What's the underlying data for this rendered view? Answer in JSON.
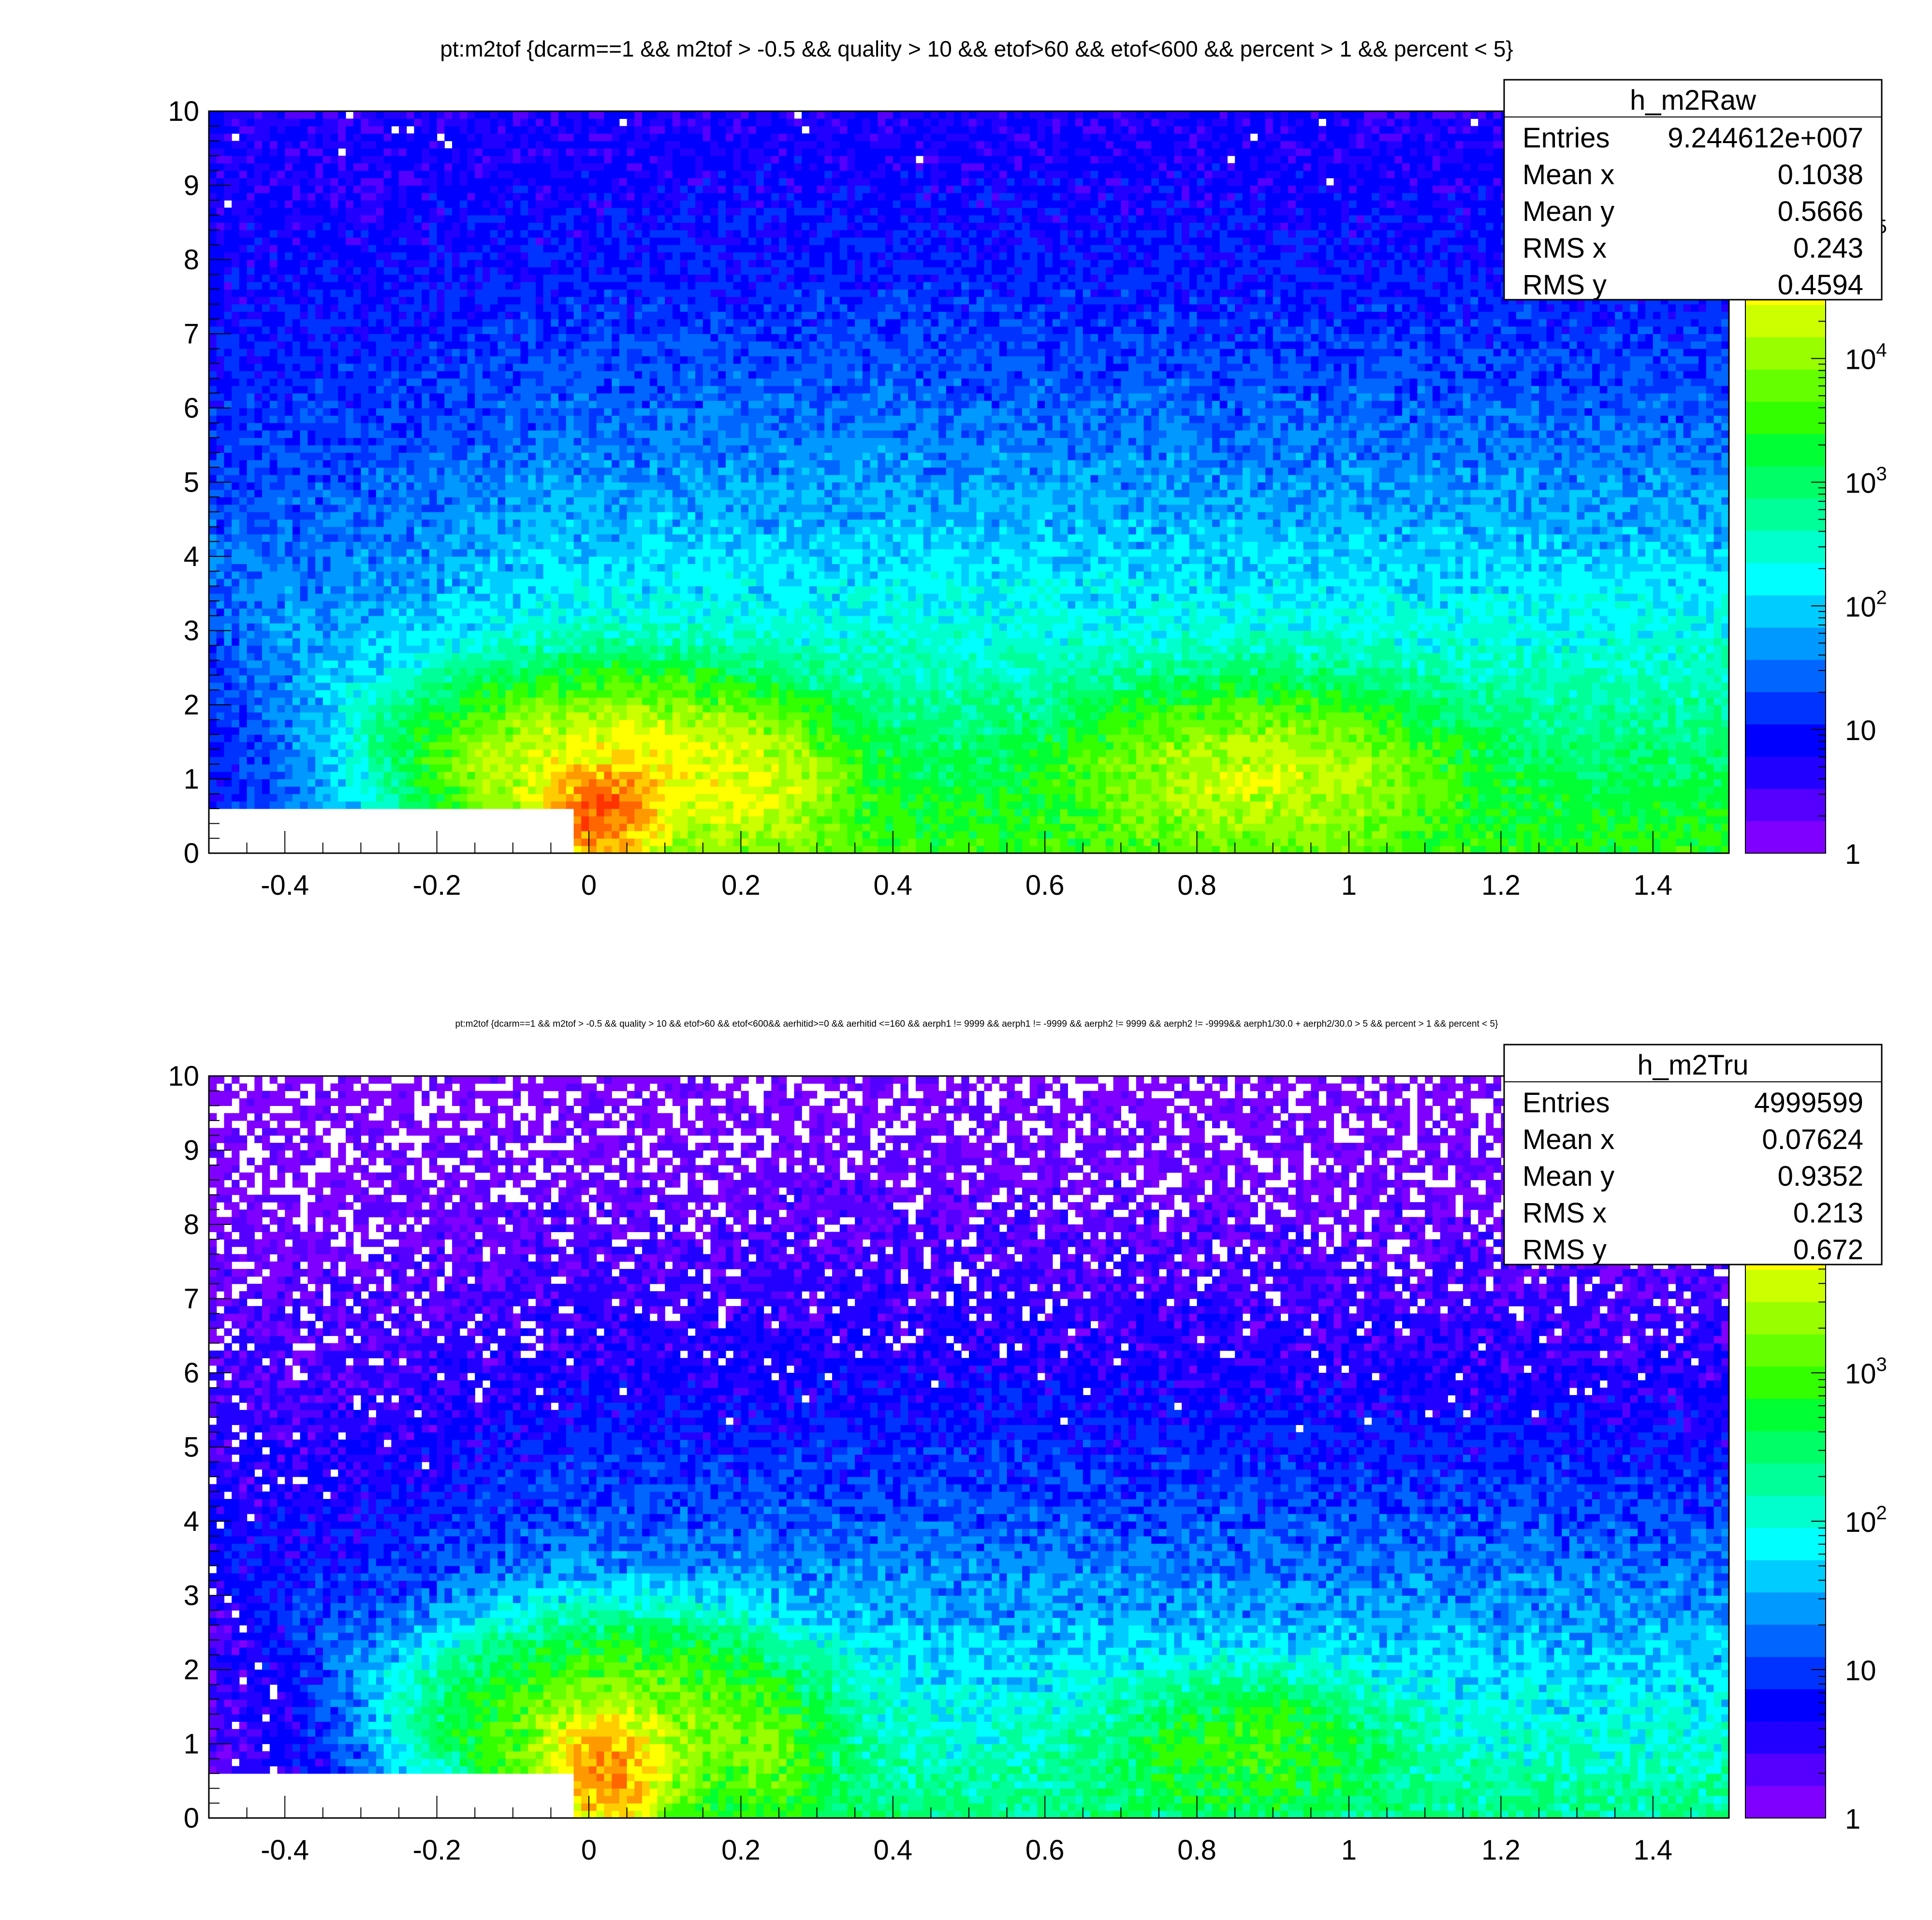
{
  "chart_data": [
    {
      "type": "heatmap",
      "histogram": "h_m2Raw",
      "title": "pt:m2tof {dcarm==1 && m2tof > -0.5 && quality > 10 && etof>60 && etof<600 && percent > 1 && percent < 5}",
      "xlabel": "",
      "ylabel": "",
      "xlim": [
        -0.5,
        1.5
      ],
      "ylim": [
        0,
        10
      ],
      "x_ticks": [
        "-0.4",
        "-0.2",
        "0",
        "0.2",
        "0.4",
        "0.6",
        "0.8",
        "1",
        "1.2",
        "1.4"
      ],
      "y_ticks": [
        "0",
        "1",
        "2",
        "3",
        "4",
        "5",
        "6",
        "7",
        "8",
        "9",
        "10"
      ],
      "z_scale": "log",
      "zlim": [
        1,
        1000000
      ],
      "z_tick_labels": [
        {
          "base": "1",
          "exp": ""
        },
        {
          "base": "10",
          "exp": ""
        },
        {
          "base": "10",
          "exp": "2"
        },
        {
          "base": "10",
          "exp": "3"
        },
        {
          "base": "10",
          "exp": "4"
        },
        {
          "base": "10",
          "exp": "5"
        }
      ],
      "grid": false,
      "stats": {
        "name": "h_m2Raw",
        "rows": [
          {
            "label": "Entries",
            "value": "9.244612e+007"
          },
          {
            "label": "Mean x",
            "value": "0.1038"
          },
          {
            "label": "Mean y",
            "value": "0.5666"
          },
          {
            "label": "RMS x",
            "value": "0.243"
          },
          {
            "label": "RMS y",
            "value": "0.4594"
          }
        ]
      },
      "peaks": [
        {
          "particle_m2": 0.02,
          "pt": 0.55,
          "max_count": 300000
        },
        {
          "particle_m2": 0.24,
          "pt": 0.8,
          "max_count": 15000
        },
        {
          "particle_m2": 0.88,
          "pt": 1.0,
          "max_count": 20000
        }
      ]
    },
    {
      "type": "heatmap",
      "histogram": "h_m2Tru",
      "title": "pt:m2tof {dcarm==1 && m2tof > -0.5 && quality > 10 && etof>60 && etof<600&& aerhitid>=0 && aerhitid <=160 && aerph1 != 9999 && aerph1 != -9999 && aerph2 != 9999 && aerph2 != -9999&& aerph1/30.0 + aerph2/30.0 > 5 && percent > 1 && percent < 5}",
      "xlabel": "",
      "ylabel": "",
      "xlim": [
        -0.5,
        1.5
      ],
      "ylim": [
        0,
        10
      ],
      "x_ticks": [
        "-0.4",
        "-0.2",
        "0",
        "0.2",
        "0.4",
        "0.6",
        "0.8",
        "1",
        "1.2",
        "1.4"
      ],
      "y_ticks": [
        "0",
        "1",
        "2",
        "3",
        "4",
        "5",
        "6",
        "7",
        "8",
        "9",
        "10"
      ],
      "z_scale": "log",
      "zlim": [
        1,
        100000
      ],
      "z_tick_labels": [
        {
          "base": "1",
          "exp": ""
        },
        {
          "base": "10",
          "exp": ""
        },
        {
          "base": "10",
          "exp": "2"
        },
        {
          "base": "10",
          "exp": "3"
        }
      ],
      "grid": false,
      "stats": {
        "name": "h_m2Tru",
        "rows": [
          {
            "label": "Entries",
            "value": "4999599"
          },
          {
            "label": "Mean x",
            "value": "0.07624"
          },
          {
            "label": "Mean y",
            "value": "0.9352"
          },
          {
            "label": "RMS x",
            "value": "0.213"
          },
          {
            "label": "RMS y",
            "value": "0.672"
          }
        ]
      },
      "peaks": [
        {
          "particle_m2": 0.02,
          "pt": 0.6,
          "max_count": 20000
        },
        {
          "particle_m2": 0.24,
          "pt": 0.8,
          "max_count": 800
        },
        {
          "particle_m2": 0.87,
          "pt": 0.95,
          "max_count": 800
        }
      ]
    }
  ],
  "colors": {
    "palette": [
      "#7f00ff",
      "#5500ff",
      "#2200ff",
      "#0000ff",
      "#0033ff",
      "#0066ff",
      "#0099ff",
      "#00ccff",
      "#00ffff",
      "#00ffcc",
      "#00ff99",
      "#00ff66",
      "#00ff33",
      "#33ff00",
      "#66ff00",
      "#99ff00",
      "#ccff00",
      "#ffff00",
      "#ffcc00",
      "#ff9900",
      "#ff6600",
      "#ff3300",
      "#ff0000"
    ],
    "frame": "#000000",
    "background": "#ffffff"
  }
}
